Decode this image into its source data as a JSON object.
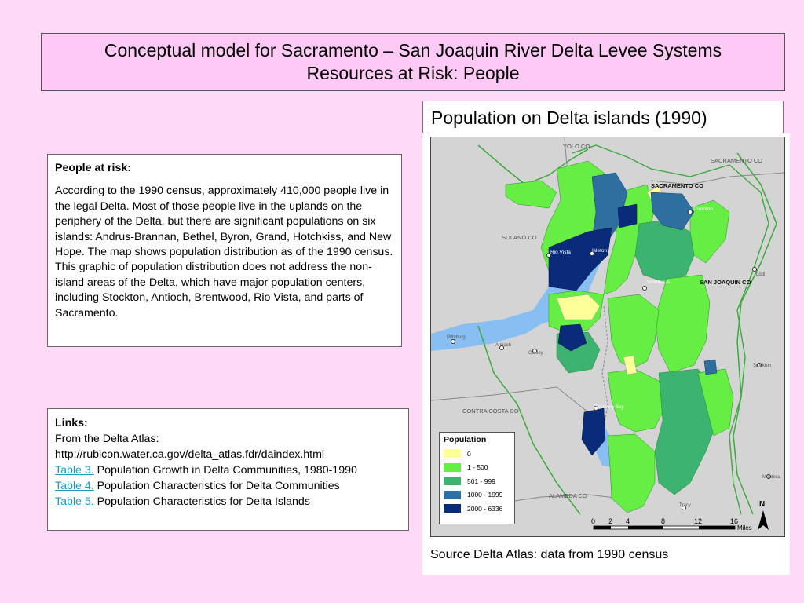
{
  "title": {
    "line1": "Conceptual model for Sacramento – San Joaquin River Delta Levee Systems",
    "line2": "Resources at Risk: People"
  },
  "map_title": "Population on Delta islands (1990)",
  "source": "Source Delta Atlas: data from 1990 census",
  "risk": {
    "heading": "People at risk:",
    "body": "According to the 1990 census, approximately 410,000 people live in the legal Delta.  Most of those people live in the uplands on the periphery of the Delta, but there are significant populations on six islands:  Andrus-Brannan, Bethel, Byron, Grand, Hotchkiss, and New Hope.  The map shows population distribution as of the 1990 census. This graphic of population distribution does not address the non-island areas of the Delta, which have major population centers, including Stockton, Antioch, Brentwood, Rio Vista, and parts of Sacramento."
  },
  "links": {
    "heading": "Links:",
    "from": "From the Delta Atlas:",
    "url": "http://rubicon.water.ca.gov/delta_atlas.fdr/daindex.html",
    "items": [
      {
        "link": "Table 3.",
        "text": " Population Growth in Delta Communities, 1980-1990"
      },
      {
        "link": "Table 4.",
        "text": " Population Characteristics for Delta Communities"
      },
      {
        "link": "Table 5.",
        "text": " Population Characteristics for Delta Islands"
      }
    ]
  },
  "legend": {
    "title": "Population",
    "classes": [
      {
        "label": "0",
        "color": "#ffff99"
      },
      {
        "label": "1 - 500",
        "color": "#66ee44"
      },
      {
        "label": "501 - 999",
        "color": "#3cb371"
      },
      {
        "label": "1000 - 1999",
        "color": "#2e6fa0"
      },
      {
        "label": "2000 - 6336",
        "color": "#0a2a7a"
      }
    ]
  },
  "map_labels": {
    "yolo": "YOLO CO",
    "sacramento": "SACRAMENTO CO",
    "sacramento2": "SACRAMENTO CO",
    "solano": "SOLANO CO",
    "san_joaquin": "SAN JOAQUIN CO",
    "contra_costa": "CONTRA COSTA CO",
    "alameda": "ALAMEDA CO",
    "rio_vista": "Rio Vista",
    "isleton": "Isleton",
    "thornton": "Thornton",
    "terminous": "Terminous",
    "lodi": "Lodi",
    "pittsburg": "Pittsburg",
    "antioch": "Antioch",
    "oakley": "Oakley",
    "discovery_bay": "Discovery Bay",
    "stockton": "Stockton",
    "manteca": "Manteca",
    "tracy": "Tracy"
  },
  "scale": {
    "ticks": [
      "0",
      "2",
      "4",
      "8",
      "12",
      "16"
    ],
    "unit": "Miles",
    "north": "N"
  }
}
